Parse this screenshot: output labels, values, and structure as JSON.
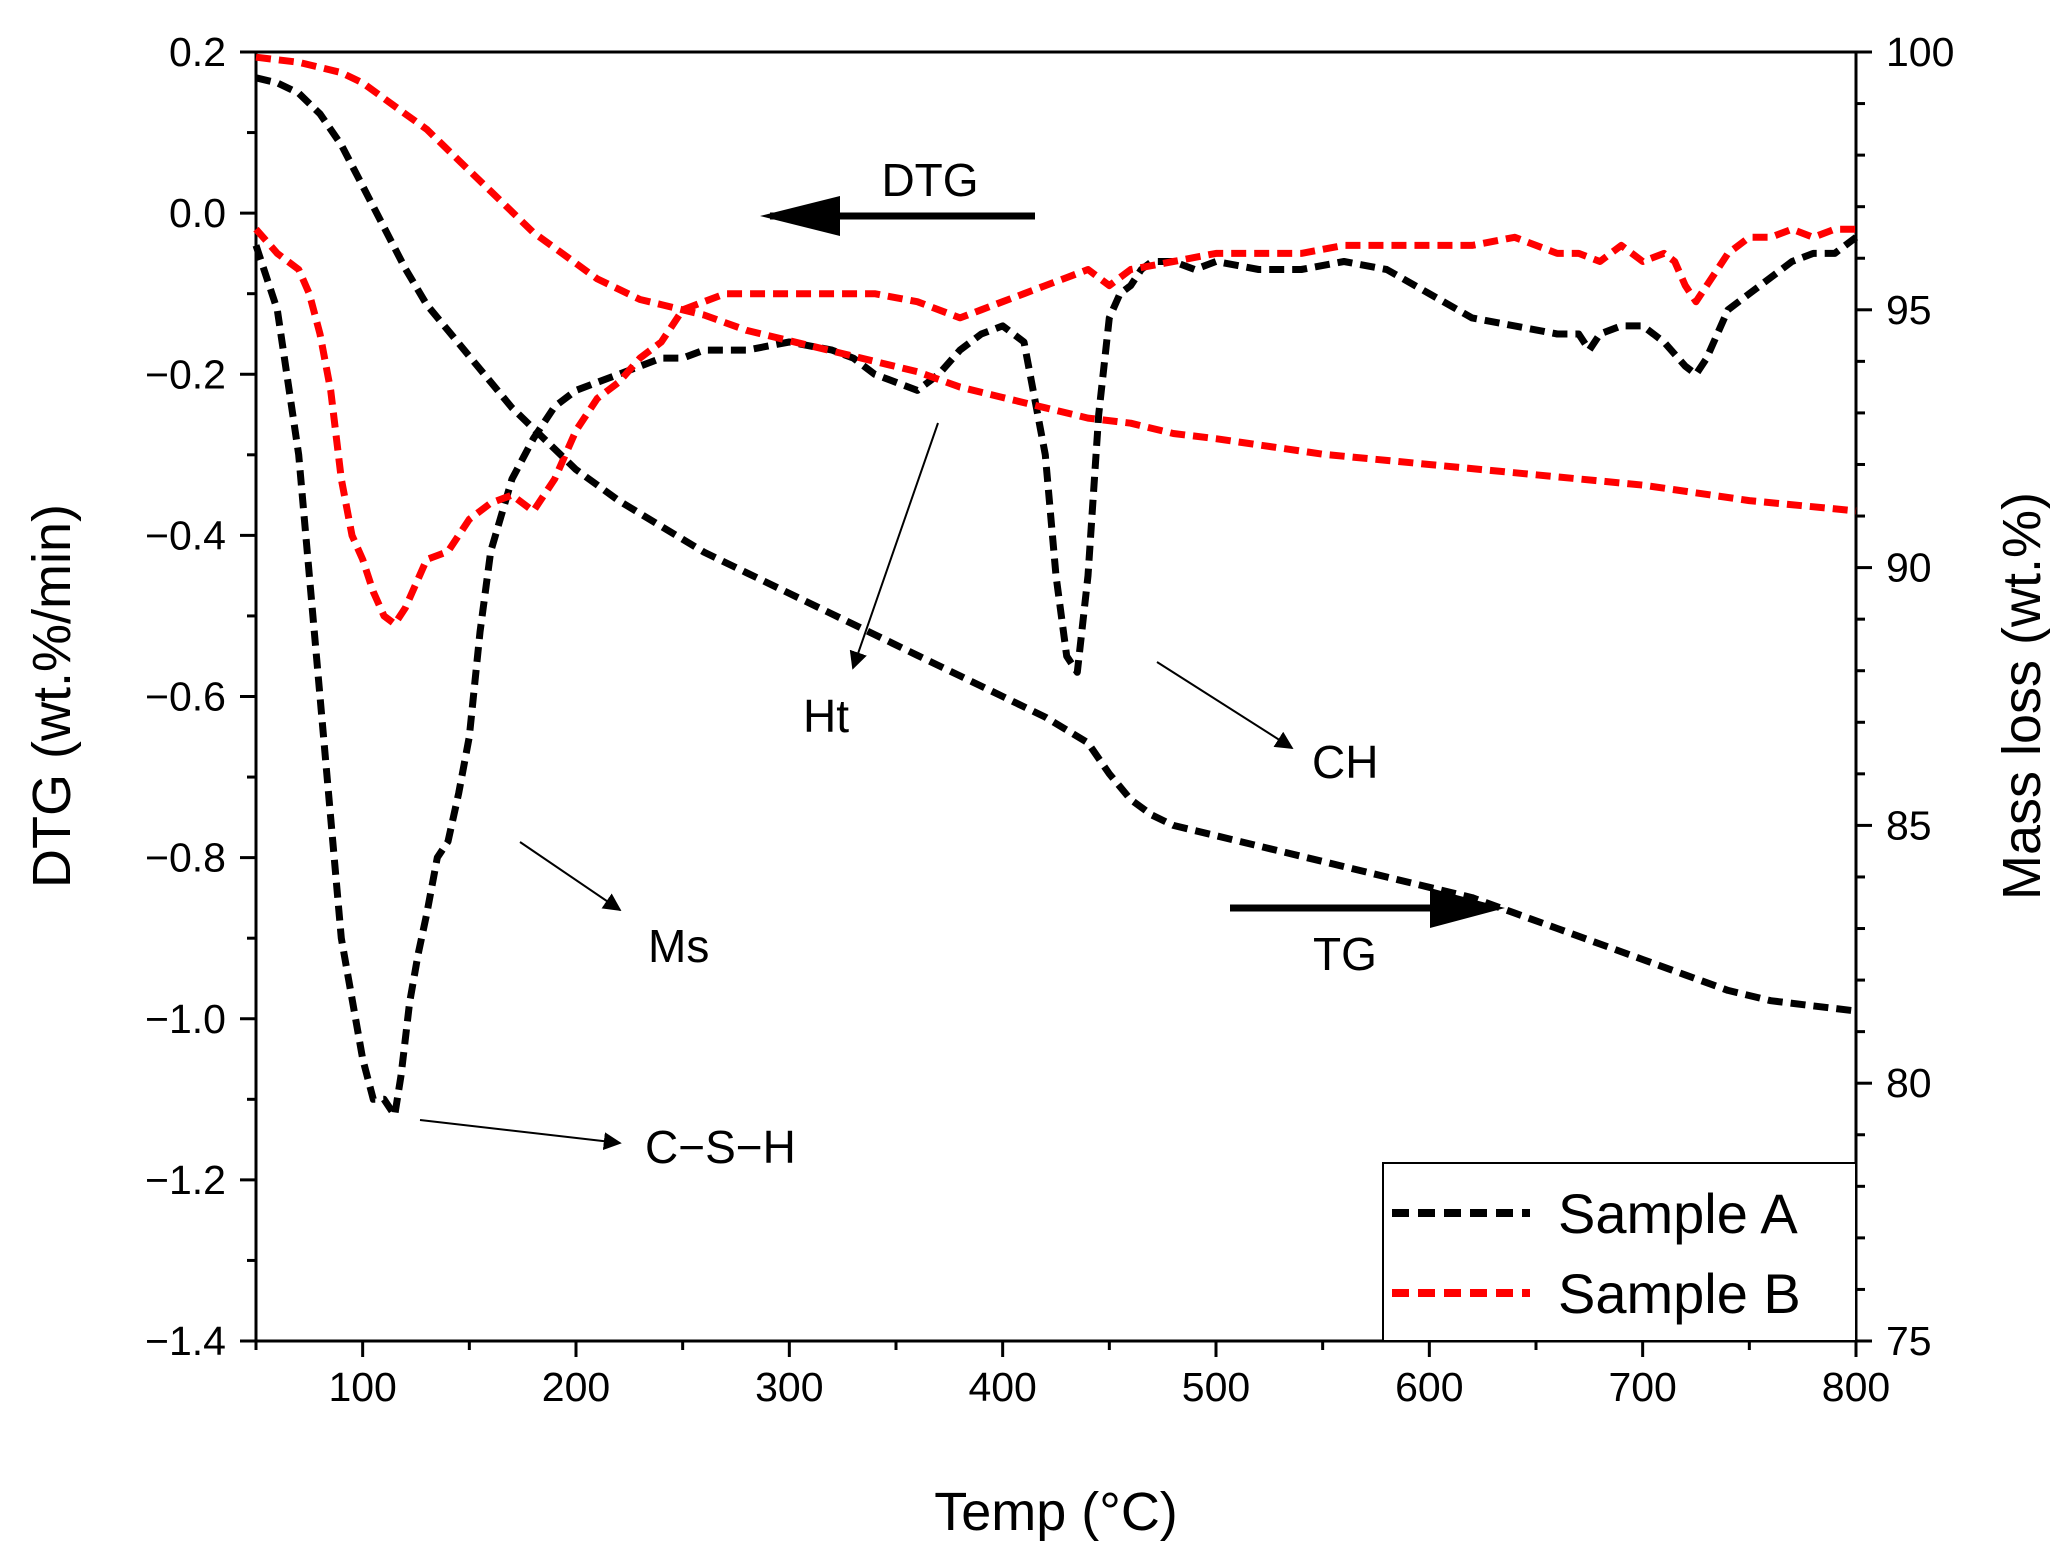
{
  "chart_data": {
    "type": "line",
    "xlabel": "Temp (°C)",
    "ylabel_left": "DTG (wt.%/min)",
    "ylabel_right": "Mass loss (wt.%)",
    "xlim": [
      50,
      800
    ],
    "ylim_left": [
      -1.4,
      0.2
    ],
    "ylim_right": [
      75,
      100
    ],
    "x_ticks": [
      100,
      200,
      300,
      400,
      500,
      600,
      700,
      800
    ],
    "y_left_ticks": [
      0.2,
      0.0,
      -0.2,
      -0.4,
      -0.6,
      -0.8,
      -1.0,
      -1.2,
      -1.4
    ],
    "y_left_tick_labels": [
      "0.2",
      "0.0",
      "−0.2",
      "−0.4",
      "−0.6",
      "−0.8",
      "−1.0",
      "−1.2",
      "−1.4"
    ],
    "y_right_ticks": [
      100,
      95,
      90,
      85,
      80,
      75
    ],
    "grid": false,
    "colors": {
      "sample_a": "#000000",
      "sample_b": "#ff0000"
    },
    "legend": {
      "position": "bottom-right",
      "entries": [
        "Sample A",
        "Sample B"
      ]
    },
    "series": [
      {
        "name": "Sample A",
        "kind": "DTG",
        "axis": "left",
        "color": "#000000",
        "x": [
          50,
          60,
          70,
          80,
          90,
          100,
          105,
          110,
          115,
          118,
          122,
          126,
          130,
          135,
          140,
          145,
          150,
          155,
          160,
          170,
          180,
          190,
          200,
          210,
          220,
          230,
          240,
          250,
          260,
          280,
          300,
          320,
          330,
          340,
          350,
          360,
          370,
          380,
          390,
          400,
          410,
          420,
          425,
          430,
          435,
          440,
          445,
          450,
          455,
          460,
          465,
          470,
          475,
          480,
          490,
          500,
          520,
          540,
          560,
          580,
          600,
          620,
          640,
          660,
          670,
          675,
          680,
          690,
          700,
          710,
          720,
          725,
          730,
          740,
          750,
          760,
          770,
          780,
          790,
          800
        ],
        "values": [
          -0.04,
          -0.12,
          -0.3,
          -0.6,
          -0.9,
          -1.05,
          -1.1,
          -1.1,
          -1.12,
          -1.07,
          -0.98,
          -0.92,
          -0.87,
          -0.8,
          -0.78,
          -0.72,
          -0.65,
          -0.52,
          -0.42,
          -0.33,
          -0.28,
          -0.24,
          -0.22,
          -0.21,
          -0.2,
          -0.19,
          -0.18,
          -0.18,
          -0.17,
          -0.17,
          -0.16,
          -0.17,
          -0.18,
          -0.2,
          -0.21,
          -0.22,
          -0.2,
          -0.17,
          -0.15,
          -0.14,
          -0.16,
          -0.3,
          -0.45,
          -0.55,
          -0.57,
          -0.45,
          -0.25,
          -0.13,
          -0.1,
          -0.09,
          -0.07,
          -0.06,
          -0.06,
          -0.06,
          -0.07,
          -0.06,
          -0.07,
          -0.07,
          -0.06,
          -0.07,
          -0.1,
          -0.13,
          -0.14,
          -0.15,
          -0.15,
          -0.17,
          -0.15,
          -0.14,
          -0.14,
          -0.16,
          -0.19,
          -0.2,
          -0.18,
          -0.12,
          -0.1,
          -0.08,
          -0.06,
          -0.05,
          -0.05,
          -0.03
        ]
      },
      {
        "name": "Sample B",
        "kind": "DTG",
        "axis": "left",
        "color": "#ff0000",
        "x": [
          50,
          60,
          70,
          75,
          80,
          85,
          90,
          95,
          100,
          105,
          110,
          115,
          120,
          125,
          130,
          140,
          150,
          160,
          170,
          180,
          190,
          200,
          210,
          220,
          230,
          240,
          250,
          260,
          270,
          280,
          300,
          320,
          340,
          360,
          380,
          390,
          400,
          410,
          420,
          430,
          440,
          450,
          460,
          480,
          500,
          520,
          540,
          560,
          580,
          600,
          620,
          640,
          660,
          670,
          680,
          690,
          700,
          710,
          715,
          720,
          725,
          730,
          740,
          750,
          760,
          770,
          780,
          790,
          800
        ],
        "values": [
          -0.02,
          -0.05,
          -0.07,
          -0.1,
          -0.15,
          -0.22,
          -0.33,
          -0.4,
          -0.43,
          -0.47,
          -0.5,
          -0.51,
          -0.49,
          -0.46,
          -0.43,
          -0.42,
          -0.38,
          -0.36,
          -0.35,
          -0.37,
          -0.33,
          -0.27,
          -0.23,
          -0.21,
          -0.18,
          -0.16,
          -0.12,
          -0.11,
          -0.1,
          -0.1,
          -0.1,
          -0.1,
          -0.1,
          -0.11,
          -0.13,
          -0.12,
          -0.11,
          -0.1,
          -0.09,
          -0.08,
          -0.07,
          -0.09,
          -0.07,
          -0.06,
          -0.05,
          -0.05,
          -0.05,
          -0.04,
          -0.04,
          -0.04,
          -0.04,
          -0.03,
          -0.05,
          -0.05,
          -0.06,
          -0.04,
          -0.06,
          -0.05,
          -0.06,
          -0.09,
          -0.11,
          -0.09,
          -0.05,
          -0.03,
          -0.03,
          -0.02,
          -0.03,
          -0.02,
          -0.02
        ]
      },
      {
        "name": "Sample A",
        "kind": "TG",
        "axis": "right",
        "color": "#000000",
        "x": [
          50,
          60,
          70,
          80,
          90,
          100,
          110,
          120,
          130,
          140,
          150,
          160,
          170,
          180,
          190,
          200,
          220,
          240,
          260,
          280,
          300,
          320,
          340,
          360,
          380,
          400,
          420,
          440,
          450,
          460,
          470,
          480,
          500,
          520,
          540,
          560,
          580,
          600,
          620,
          640,
          660,
          680,
          700,
          720,
          740,
          760,
          780,
          800
        ],
        "values": [
          99.5,
          99.4,
          99.2,
          98.8,
          98.2,
          97.4,
          96.6,
          95.8,
          95.1,
          94.6,
          94.1,
          93.6,
          93.1,
          92.7,
          92.3,
          91.9,
          91.3,
          90.8,
          90.3,
          89.9,
          89.5,
          89.1,
          88.7,
          88.3,
          87.9,
          87.5,
          87.1,
          86.6,
          86.0,
          85.5,
          85.2,
          85.0,
          84.8,
          84.6,
          84.4,
          84.2,
          84.0,
          83.8,
          83.6,
          83.3,
          83.0,
          82.7,
          82.4,
          82.1,
          81.8,
          81.6,
          81.5,
          81.4
        ]
      },
      {
        "name": "Sample B",
        "kind": "TG",
        "axis": "right",
        "color": "#ff0000",
        "x": [
          50,
          70,
          90,
          100,
          110,
          120,
          130,
          140,
          150,
          160,
          170,
          180,
          190,
          200,
          210,
          220,
          230,
          240,
          250,
          260,
          280,
          300,
          320,
          340,
          360,
          380,
          400,
          420,
          440,
          460,
          480,
          500,
          550,
          600,
          650,
          700,
          750,
          800
        ],
        "values": [
          99.9,
          99.8,
          99.6,
          99.4,
          99.1,
          98.8,
          98.5,
          98.1,
          97.7,
          97.3,
          96.9,
          96.5,
          96.2,
          95.9,
          95.6,
          95.4,
          95.2,
          95.1,
          95.0,
          94.9,
          94.6,
          94.4,
          94.2,
          94.0,
          93.8,
          93.5,
          93.3,
          93.1,
          92.9,
          92.8,
          92.6,
          92.5,
          92.2,
          92.0,
          91.8,
          91.6,
          91.3,
          91.1
        ]
      }
    ],
    "annotations": {
      "dtg_label": "DTG",
      "tg_label": "TG",
      "csh": "C−S−H",
      "ms": "Ms",
      "ht": "Ht",
      "ch": "CH"
    }
  }
}
